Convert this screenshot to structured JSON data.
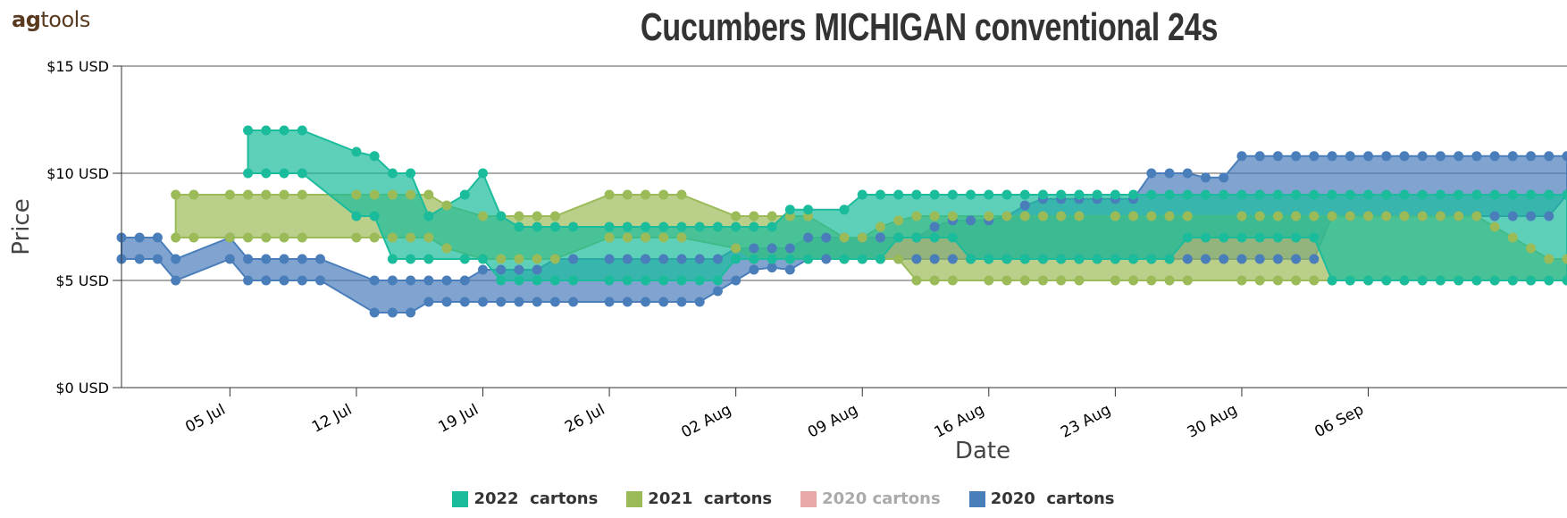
{
  "brand": {
    "prefix": "ag",
    "suffix": "tools"
  },
  "chart_data": {
    "type": "area",
    "title": "Cucumbers MICHIGAN conventional 24s",
    "xlabel": "Date",
    "ylabel": "Price",
    "ylim": [
      0,
      15
    ],
    "yticks": [
      0,
      5,
      10,
      15
    ],
    "ytick_labels": [
      "$0 USD",
      "$5 USD",
      "$10 USD",
      "$15 USD"
    ],
    "x_day_range": [
      0,
      80
    ],
    "xtick_days": [
      6,
      13,
      20,
      27,
      34,
      41,
      48,
      55,
      62,
      69
    ],
    "xtick_labels": [
      "05 Jul",
      "12 Jul",
      "19 Jul",
      "26 Jul",
      "02 Aug",
      "09 Aug",
      "16 Aug",
      "23 Aug",
      "30 Aug",
      "06 Sep"
    ],
    "x_unit": "days since 29 Jun",
    "legend_position": "bottom-center",
    "grid": true,
    "series": [
      {
        "name": "2020  cartons",
        "color": "#4a7ebb",
        "visible": true,
        "days": [
          0,
          1,
          2,
          3,
          6,
          7,
          8,
          9,
          10,
          11,
          14,
          15,
          16,
          17,
          18,
          19,
          20,
          21,
          22,
          23,
          24,
          25,
          27,
          28,
          29,
          30,
          31,
          32,
          33,
          34,
          35,
          36,
          37,
          38,
          39,
          40,
          41,
          42,
          43,
          44,
          45,
          46,
          47,
          48,
          49,
          50,
          51,
          52,
          53,
          54,
          55,
          56,
          57,
          58,
          59,
          60,
          61,
          62,
          63,
          64,
          65,
          66,
          67,
          68,
          69,
          70,
          71,
          72,
          73,
          74,
          75,
          76,
          77,
          78,
          79,
          80
        ],
        "low": [
          6,
          6,
          6,
          5,
          6,
          5,
          5,
          5,
          5,
          5,
          3.5,
          3.5,
          3.5,
          4,
          4,
          4,
          4,
          4,
          4,
          4,
          4,
          4,
          4,
          4,
          4,
          4,
          4,
          4,
          4.5,
          5,
          5.5,
          5.6,
          5.5,
          6,
          6,
          6,
          6,
          6,
          6,
          6,
          6,
          6,
          6,
          6,
          6,
          6,
          6,
          6,
          6,
          6,
          6,
          6,
          6,
          6,
          6,
          6,
          6,
          6,
          6,
          6,
          6,
          6,
          8,
          8,
          8,
          8,
          8,
          8,
          8,
          8,
          8,
          8,
          8,
          8,
          8,
          9
        ],
        "high": [
          7,
          7,
          7,
          6,
          7,
          6,
          6,
          6,
          6,
          6,
          5,
          5,
          5,
          5,
          5,
          5,
          5.5,
          5.5,
          5.5,
          5.5,
          6,
          6,
          6,
          6,
          6,
          6,
          6,
          6,
          6,
          6.5,
          6.5,
          6.5,
          6.5,
          7,
          7,
          7,
          7,
          7,
          7,
          7,
          7.5,
          7.8,
          7.8,
          7.8,
          8,
          8.5,
          8.8,
          8.8,
          8.8,
          8.8,
          8.8,
          8.8,
          10,
          10,
          10,
          9.8,
          9.8,
          10.8,
          10.8,
          10.8,
          10.8,
          10.8,
          10.8,
          10.8,
          10.8,
          10.8,
          10.8,
          10.8,
          10.8,
          10.8,
          10.8,
          10.8,
          10.8,
          10.8,
          10.8,
          10.8
        ]
      },
      {
        "name": "2021  cartons",
        "color": "#9bbb59",
        "visible": true,
        "days": [
          3,
          4,
          6,
          7,
          8,
          9,
          10,
          13,
          14,
          15,
          16,
          17,
          18,
          20,
          21,
          22,
          23,
          24,
          27,
          28,
          29,
          30,
          31,
          34,
          35,
          36,
          37,
          38,
          40,
          41,
          42,
          43,
          44,
          45,
          46,
          48,
          49,
          50,
          51,
          52,
          53,
          55,
          56,
          57,
          58,
          59,
          62,
          63,
          64,
          65,
          66,
          67,
          68,
          69,
          70,
          71,
          72,
          73,
          74,
          75,
          76,
          77,
          78,
          79,
          80
        ],
        "low": [
          7,
          7,
          7,
          7,
          7,
          7,
          7,
          7,
          7,
          7,
          7,
          7,
          6.5,
          6,
          6,
          6,
          6,
          6,
          7,
          7,
          7,
          7,
          7,
          6.5,
          6,
          6,
          6,
          6,
          6,
          6,
          6,
          6,
          5,
          5,
          5,
          5,
          5,
          5,
          5,
          5,
          5,
          5,
          5,
          5,
          5,
          5,
          5,
          5,
          5,
          5,
          5,
          5,
          5,
          5,
          5,
          5,
          5,
          5,
          5,
          5,
          5,
          5,
          5,
          5,
          5
        ],
        "high": [
          9,
          9,
          9,
          9,
          9,
          9,
          9,
          9,
          9,
          9,
          9,
          9,
          8.5,
          8,
          8,
          8,
          8,
          8,
          9,
          9,
          9,
          9,
          9,
          8,
          8,
          8,
          8,
          8,
          7,
          7,
          7.5,
          7.8,
          8,
          8,
          8,
          8,
          8,
          8,
          8,
          8,
          8,
          8,
          8,
          8,
          8,
          8,
          8,
          8,
          8,
          8,
          8,
          8,
          8,
          8,
          8,
          8,
          8,
          8,
          8,
          8,
          7.5,
          7,
          6.5,
          6,
          6
        ]
      },
      {
        "name": "2020 cartons",
        "color": "#e8a9a9",
        "visible": false,
        "days": [],
        "low": [],
        "high": []
      },
      {
        "name": "2022  cartons",
        "color": "#1abc9c",
        "visible": true,
        "days": [
          7,
          8,
          9,
          10,
          13,
          14,
          15,
          16,
          17,
          19,
          20,
          21,
          22,
          23,
          24,
          25,
          27,
          28,
          29,
          30,
          31,
          32,
          33,
          34,
          35,
          36,
          37,
          38,
          40,
          41,
          42,
          43,
          44,
          45,
          46,
          47,
          48,
          49,
          50,
          51,
          52,
          53,
          54,
          55,
          56,
          57,
          58,
          59,
          60,
          61,
          62,
          63,
          64,
          65,
          66,
          67,
          68,
          69,
          70,
          71,
          72,
          73,
          74,
          75,
          76,
          77,
          78,
          79,
          80
        ],
        "low": [
          10,
          10,
          10,
          10,
          8,
          8,
          6,
          6,
          6,
          6,
          6,
          5,
          5,
          5,
          5,
          5,
          5,
          5,
          5,
          5,
          5,
          5,
          5,
          6,
          6,
          6,
          6,
          6,
          6,
          6,
          6,
          7,
          7,
          7,
          7,
          6,
          6,
          6,
          6,
          6,
          6,
          6,
          6,
          6,
          6,
          6,
          6,
          7,
          7,
          7,
          7,
          7,
          7,
          7,
          7,
          5,
          5,
          5,
          5,
          5,
          5,
          5,
          5,
          5,
          5,
          5,
          5,
          5,
          5
        ],
        "high": [
          12,
          12,
          12,
          12,
          11,
          10.8,
          10,
          10,
          8,
          9,
          10,
          8,
          7.5,
          7.5,
          7.5,
          7.5,
          7.5,
          7.5,
          7.5,
          7.5,
          7.5,
          7.5,
          7.5,
          7.5,
          7.5,
          7.5,
          8.3,
          8.3,
          8.3,
          9,
          9,
          9,
          9,
          9,
          9,
          9,
          9,
          9,
          9,
          9,
          9,
          9,
          9,
          9,
          9,
          9,
          9,
          9,
          9,
          9,
          9,
          9,
          9,
          9,
          9,
          9,
          9,
          9,
          9,
          9,
          9,
          9,
          9,
          9,
          9,
          9,
          9,
          9,
          9
        ]
      }
    ]
  },
  "legend": [
    {
      "label": "2022  cartons",
      "color": "#1abc9c",
      "visible": true
    },
    {
      "label": "2021  cartons",
      "color": "#9bbb59",
      "visible": true
    },
    {
      "label": "2020 cartons",
      "color": "#e8a9a9",
      "visible": false
    },
    {
      "label": "2020  cartons",
      "color": "#4a7ebb",
      "visible": true
    }
  ]
}
